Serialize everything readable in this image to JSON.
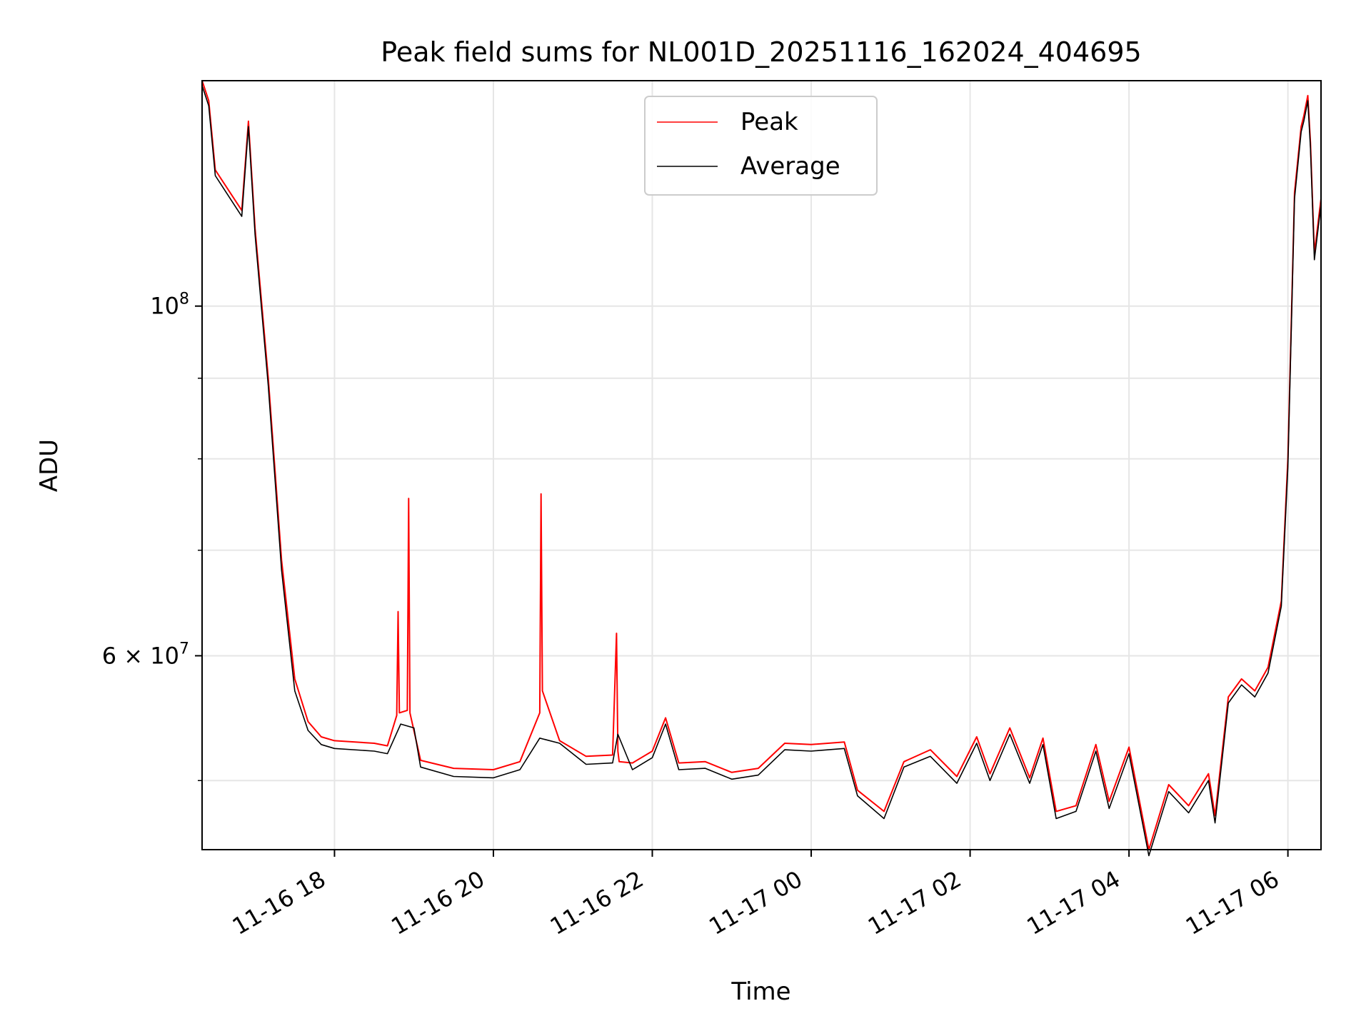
{
  "chart_data": {
    "type": "line",
    "title": "Peak field sums for NL001D_20251116_162024_404695",
    "xlabel": "Time",
    "ylabel": "ADU",
    "x_range": [
      "2025-11-16 16:20",
      "2025-11-17 06:25"
    ],
    "y_scale": "log",
    "ylim": [
      45200000,
      139000000
    ],
    "grid": true,
    "legend_position": "upper center",
    "x_ticks": [
      {
        "x": "2025-11-16 18:00",
        "label": "11-16 18"
      },
      {
        "x": "2025-11-16 20:00",
        "label": "11-16 20"
      },
      {
        "x": "2025-11-16 22:00",
        "label": "11-16 22"
      },
      {
        "x": "2025-11-17 00:00",
        "label": "11-17 00"
      },
      {
        "x": "2025-11-17 02:00",
        "label": "11-17 02"
      },
      {
        "x": "2025-11-17 04:00",
        "label": "11-17 04"
      },
      {
        "x": "2025-11-17 06:00",
        "label": "11-17 06"
      }
    ],
    "y_major_ticks": [
      {
        "y": 100000000,
        "label_base": "10",
        "label_exp": "8"
      },
      {
        "y": 60000000,
        "label_base": "6 × 10",
        "label_exp": "7"
      }
    ],
    "y_minor_ticks": [
      50000000,
      70000000,
      80000000,
      90000000
    ],
    "series": [
      {
        "name": "Peak",
        "color": "#ff0000",
        "x": [
          "2025-11-16 16:20",
          "2025-11-16 16:25",
          "2025-11-16 16:30",
          "2025-11-16 16:50",
          "2025-11-16 16:55",
          "2025-11-16 17:00",
          "2025-11-16 17:10",
          "2025-11-16 17:20",
          "2025-11-16 17:30",
          "2025-11-16 17:40",
          "2025-11-16 17:50",
          "2025-11-16 18:00",
          "2025-11-16 18:30",
          "2025-11-16 18:40",
          "2025-11-16 18:47",
          "2025-11-16 18:48",
          "2025-11-16 18:49",
          "2025-11-16 18:55",
          "2025-11-16 18:56",
          "2025-11-16 18:57",
          "2025-11-16 19:05",
          "2025-11-16 19:30",
          "2025-11-16 20:00",
          "2025-11-16 20:20",
          "2025-11-16 20:35",
          "2025-11-16 20:36",
          "2025-11-16 20:37",
          "2025-11-16 20:50",
          "2025-11-16 21:10",
          "2025-11-16 21:30",
          "2025-11-16 21:33",
          "2025-11-16 21:34",
          "2025-11-16 21:35",
          "2025-11-16 21:45",
          "2025-11-16 22:00",
          "2025-11-16 22:10",
          "2025-11-16 22:20",
          "2025-11-16 22:40",
          "2025-11-16 23:00",
          "2025-11-16 23:20",
          "2025-11-16 23:40",
          "2025-11-17 00:00",
          "2025-11-17 00:25",
          "2025-11-17 00:35",
          "2025-11-17 00:55",
          "2025-11-17 01:10",
          "2025-11-17 01:30",
          "2025-11-17 01:50",
          "2025-11-17 02:05",
          "2025-11-17 02:15",
          "2025-11-17 02:30",
          "2025-11-17 02:45",
          "2025-11-17 02:55",
          "2025-11-17 03:05",
          "2025-11-17 03:20",
          "2025-11-17 03:35",
          "2025-11-17 03:45",
          "2025-11-17 04:00",
          "2025-11-17 04:15",
          "2025-11-17 04:30",
          "2025-11-17 04:45",
          "2025-11-17 05:00",
          "2025-11-17 05:05",
          "2025-11-17 05:15",
          "2025-11-17 05:25",
          "2025-11-17 05:35",
          "2025-11-17 05:45",
          "2025-11-17 05:55",
          "2025-11-17 06:00",
          "2025-11-17 06:05",
          "2025-11-17 06:10",
          "2025-11-17 06:12",
          "2025-11-17 06:15",
          "2025-11-17 06:17",
          "2025-11-17 06:20",
          "2025-11-17 06:25"
        ],
        "y": [
          139000000,
          135000000,
          122000000,
          115000000,
          131000000,
          112000000,
          90000000,
          69000000,
          58000000,
          54500000,
          53300000,
          53000000,
          52800000,
          52600000,
          55000000,
          64000000,
          55200000,
          55400000,
          75500000,
          55200000,
          51500000,
          50900000,
          50800000,
          51400000,
          55200000,
          76000000,
          57000000,
          53000000,
          51800000,
          51900000,
          62000000,
          52200000,
          51400000,
          51300000,
          52200000,
          54800000,
          51300000,
          51400000,
          50600000,
          50900000,
          52800000,
          52700000,
          52900000,
          49300000,
          47800000,
          51400000,
          52300000,
          50300000,
          53300000,
          50500000,
          54000000,
          50200000,
          53200000,
          47800000,
          48200000,
          52700000,
          48500000,
          52500000,
          45200000,
          49700000,
          48200000,
          50500000,
          47500000,
          56500000,
          58000000,
          57000000,
          59000000,
          65000000,
          80000000,
          118000000,
          130000000,
          132000000,
          136000000,
          127000000,
          108000000,
          117000000
        ]
      },
      {
        "name": "Average",
        "color": "#000000",
        "x": [
          "2025-11-16 16:20",
          "2025-11-16 16:25",
          "2025-11-16 16:30",
          "2025-11-16 16:50",
          "2025-11-16 16:55",
          "2025-11-16 17:00",
          "2025-11-16 17:10",
          "2025-11-16 17:20",
          "2025-11-16 17:30",
          "2025-11-16 17:40",
          "2025-11-16 17:50",
          "2025-11-16 18:00",
          "2025-11-16 18:30",
          "2025-11-16 18:40",
          "2025-11-16 18:50",
          "2025-11-16 19:00",
          "2025-11-16 19:05",
          "2025-11-16 19:30",
          "2025-11-16 20:00",
          "2025-11-16 20:20",
          "2025-11-16 20:35",
          "2025-11-16 20:50",
          "2025-11-16 21:10",
          "2025-11-16 21:30",
          "2025-11-16 21:34",
          "2025-11-16 21:45",
          "2025-11-16 22:00",
          "2025-11-16 22:10",
          "2025-11-16 22:20",
          "2025-11-16 22:40",
          "2025-11-16 23:00",
          "2025-11-16 23:20",
          "2025-11-16 23:40",
          "2025-11-17 00:00",
          "2025-11-17 00:25",
          "2025-11-17 00:35",
          "2025-11-17 00:55",
          "2025-11-17 01:10",
          "2025-11-17 01:30",
          "2025-11-17 01:50",
          "2025-11-17 02:05",
          "2025-11-17 02:15",
          "2025-11-17 02:30",
          "2025-11-17 02:45",
          "2025-11-17 02:55",
          "2025-11-17 03:05",
          "2025-11-17 03:20",
          "2025-11-17 03:35",
          "2025-11-17 03:45",
          "2025-11-17 04:00",
          "2025-11-17 04:15",
          "2025-11-17 04:30",
          "2025-11-17 04:45",
          "2025-11-17 05:00",
          "2025-11-17 05:05",
          "2025-11-17 05:15",
          "2025-11-17 05:25",
          "2025-11-17 05:35",
          "2025-11-17 05:45",
          "2025-11-17 05:55",
          "2025-11-17 06:00",
          "2025-11-17 06:05",
          "2025-11-17 06:10",
          "2025-11-17 06:12",
          "2025-11-17 06:15",
          "2025-11-17 06:17",
          "2025-11-17 06:20",
          "2025-11-17 06:25"
        ],
        "y": [
          138000000,
          134000000,
          121000000,
          114000000,
          130000000,
          111000000,
          89000000,
          68000000,
          57000000,
          53800000,
          52700000,
          52400000,
          52200000,
          52000000,
          54300000,
          54000000,
          51000000,
          50300000,
          50200000,
          50800000,
          53200000,
          52800000,
          51200000,
          51300000,
          53500000,
          50800000,
          51700000,
          54300000,
          50800000,
          50900000,
          50100000,
          50400000,
          52300000,
          52200000,
          52400000,
          48900000,
          47300000,
          51000000,
          51800000,
          49800000,
          52800000,
          50000000,
          53500000,
          49800000,
          52700000,
          47300000,
          47800000,
          52200000,
          48000000,
          52000000,
          44800000,
          49200000,
          47700000,
          50000000,
          47000000,
          56000000,
          57500000,
          56500000,
          58500000,
          64500000,
          79000000,
          117000000,
          129000000,
          131000000,
          135000000,
          126000000,
          107000000,
          116000000
        ]
      }
    ]
  }
}
